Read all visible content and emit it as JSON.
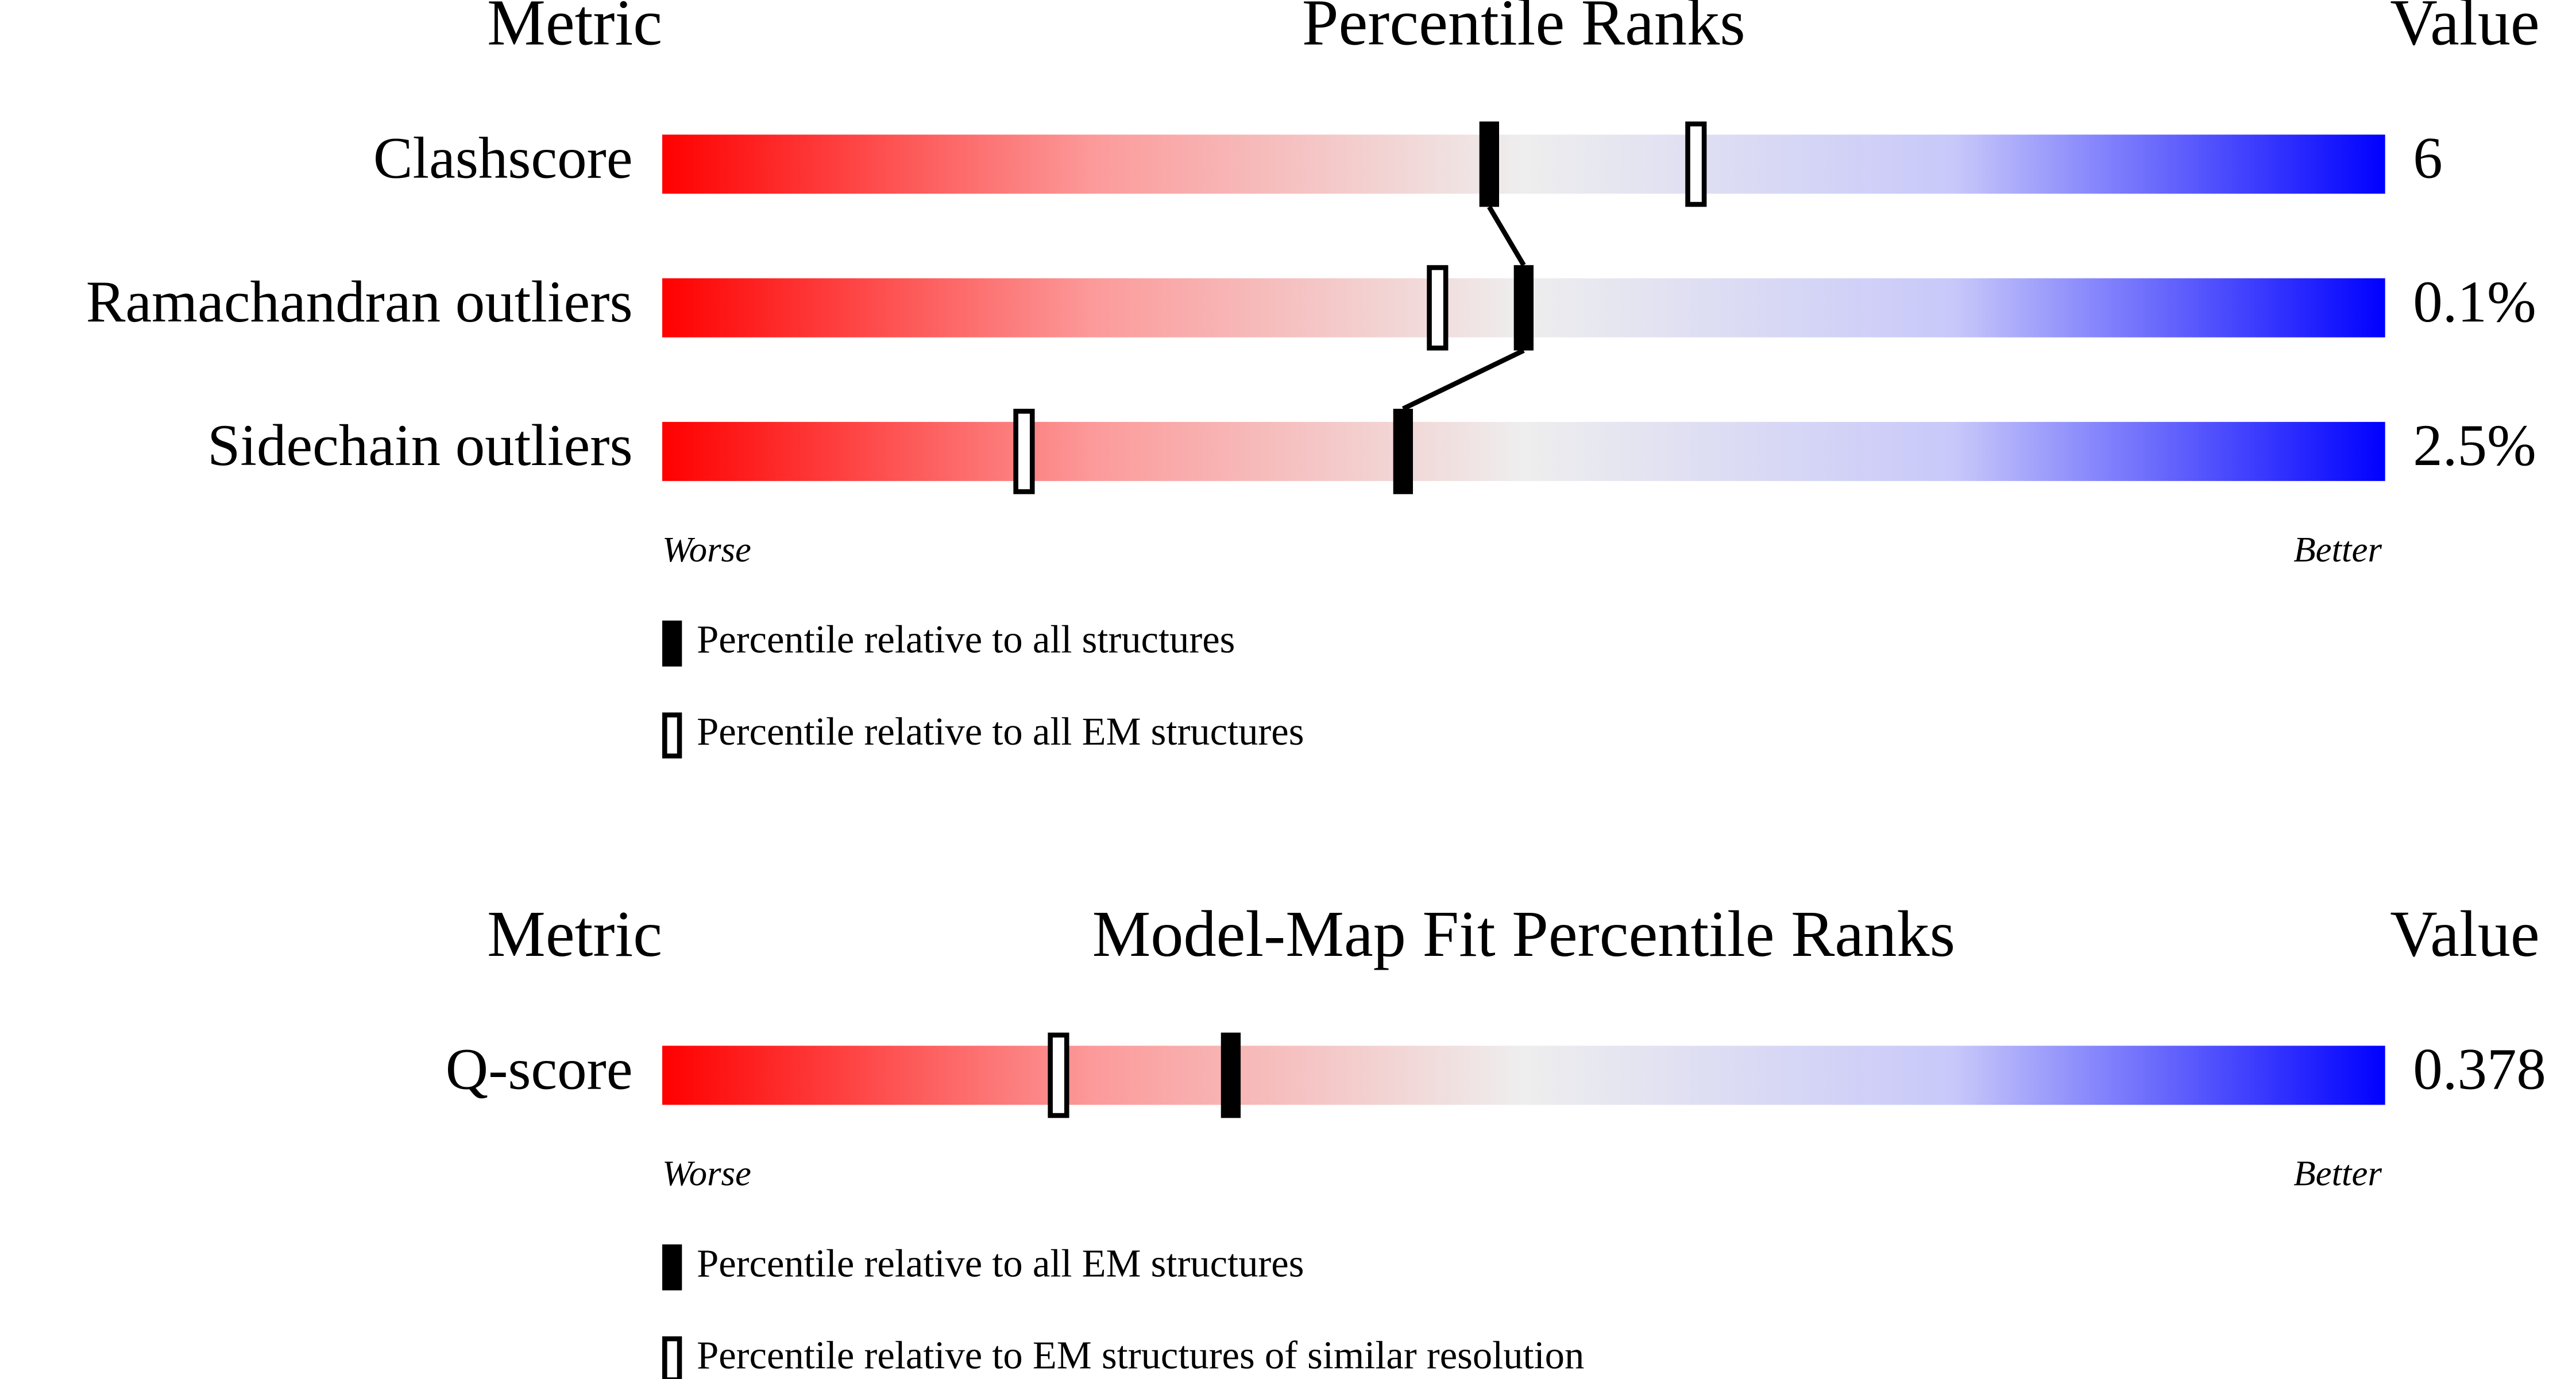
{
  "chart_data": [
    {
      "type": "slider",
      "title": "Percentile Ranks",
      "metric_header": "Metric",
      "value_header": "Value",
      "categories": [
        "Clashscore",
        "Ramachandran outliers",
        "Sidechain outliers"
      ],
      "metric_values": [
        "6",
        "0.1%",
        "2.5%"
      ],
      "xlim": [
        0,
        100
      ],
      "worse_label": "Worse",
      "better_label": "Better",
      "series": [
        {
          "name": "Percentile relative to all structures",
          "style": "filled",
          "values": [
            48,
            50,
            43
          ]
        },
        {
          "name": "Percentile relative to all EM structures",
          "style": "open",
          "values": [
            60,
            45,
            21
          ]
        }
      ]
    },
    {
      "type": "slider",
      "title": "Model-Map Fit Percentile Ranks",
      "metric_header": "Metric",
      "value_header": "Value",
      "categories": [
        "Q-score"
      ],
      "metric_values": [
        "0.378"
      ],
      "xlim": [
        0,
        100
      ],
      "worse_label": "Worse",
      "better_label": "Better",
      "series": [
        {
          "name": "Percentile relative to all EM structures",
          "style": "filled",
          "values": [
            33
          ]
        },
        {
          "name": "Percentile relative to EM structures of similar resolution",
          "style": "open",
          "values": [
            23
          ]
        }
      ]
    }
  ]
}
